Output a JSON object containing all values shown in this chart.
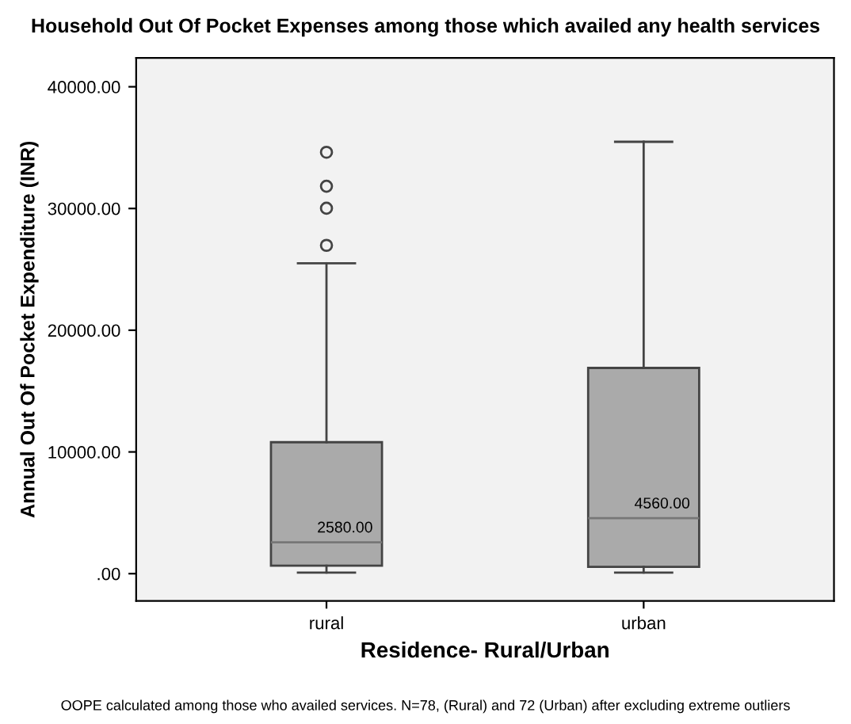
{
  "chart_data": {
    "type": "box",
    "title": "Household Out Of Pocket Expenses among those which availed any health services",
    "xlabel": "Residence- Rural/Urban",
    "ylabel": "Annual Out Of Pocket Expenditure (INR)",
    "categories": [
      "rural",
      "urban"
    ],
    "boxes": [
      {
        "low": 90,
        "q1": 650,
        "median": 2580,
        "q3": 10800,
        "high": 25500,
        "outliers": [
          26970,
          30020,
          31830,
          34620
        ]
      },
      {
        "low": 90,
        "q1": 560,
        "median": 4560,
        "q3": 16900,
        "high": 35480
      }
    ],
    "color": "#aaaaaa",
    "ylim": [
      -2240,
      42370
    ],
    "yticks": [
      {
        "value": 0,
        "label": ".00"
      },
      {
        "value": 10000,
        "label": "10000.00"
      },
      {
        "value": 20000,
        "label": "20000.00"
      },
      {
        "value": 30000,
        "label": "30000.00"
      },
      {
        "value": 40000,
        "label": "40000.00"
      }
    ],
    "grid": false,
    "legend": false,
    "annotations": [
      {
        "text": "2580.00",
        "x": "rural",
        "y": 2580
      },
      {
        "text": "4560.00",
        "x": "urban",
        "y": 4560
      },
      "OOPE calculated among those who availed services. N=78, (Rural) and 72 (Urban) after excluding extreme outliers"
    ]
  }
}
